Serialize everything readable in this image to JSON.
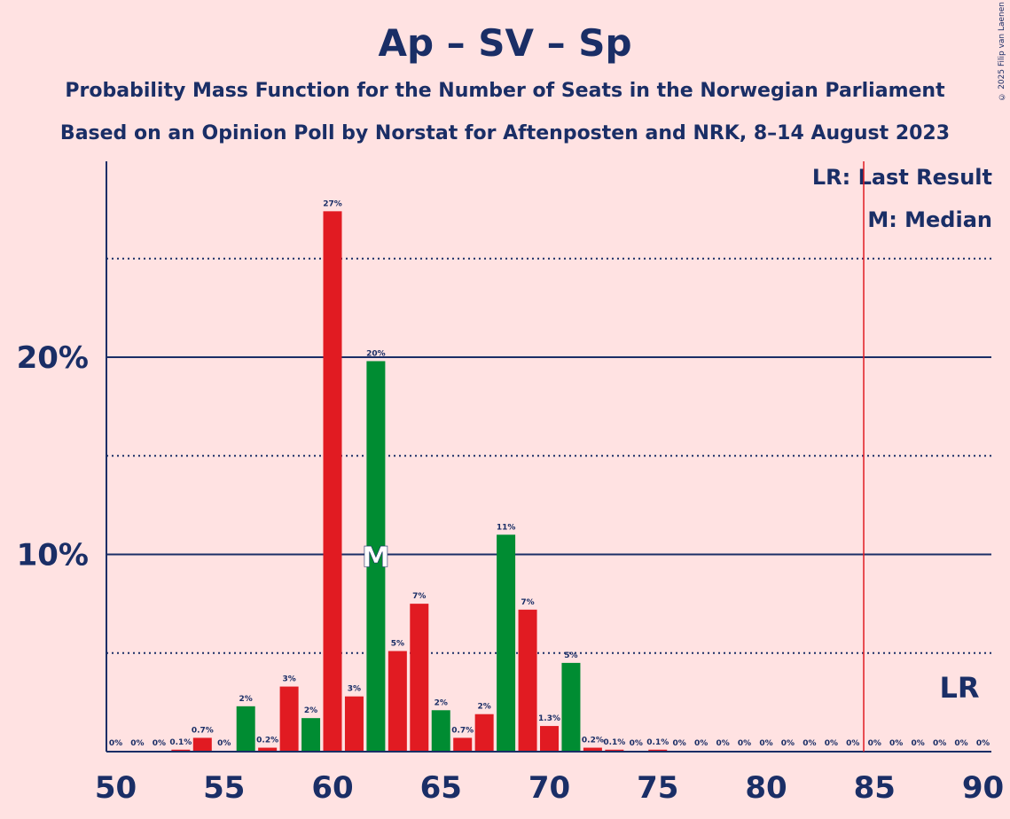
{
  "title": "Ap – SV – Sp",
  "subtitle1": "Probability Mass Function for the Number of Seats in the Norwegian Parliament",
  "subtitle2": "Based on an Opinion Poll by Norstat for Aftenposten and NRK, 8–14 August 2023",
  "copyright": "© 2025 Filip van Laenen",
  "legend": {
    "last_result": "LR: Last Result",
    "median": "M: Median"
  },
  "colors": {
    "background": "#FFE2E2",
    "text": "#1A2E66",
    "red": "#E11B22",
    "green": "#008C32",
    "lr_line": "#E11B22"
  },
  "chart_data": {
    "type": "bar",
    "x": [
      50,
      51,
      52,
      53,
      54,
      55,
      56,
      57,
      58,
      59,
      60,
      61,
      62,
      63,
      64,
      65,
      66,
      67,
      68,
      69,
      70,
      71,
      72,
      73,
      74,
      75,
      76,
      77,
      78,
      79,
      80,
      81,
      82,
      83,
      84,
      85,
      86,
      87,
      88,
      89,
      90
    ],
    "values": [
      0,
      0,
      0,
      0.1,
      0.7,
      0,
      2.3,
      0.2,
      3.3,
      1.7,
      27.4,
      2.8,
      19.8,
      5.1,
      7.5,
      2.1,
      0.7,
      1.9,
      11.0,
      7.2,
      1.3,
      4.5,
      0.2,
      0.1,
      0,
      0.1,
      0,
      0,
      0,
      0,
      0,
      0,
      0,
      0,
      0,
      0,
      0,
      0,
      0,
      0,
      0
    ],
    "labels": [
      "0%",
      "0%",
      "0%",
      "0.1%",
      "0.7%",
      "0%",
      "2%",
      "0.2%",
      "3%",
      "2%",
      "27%",
      "3%",
      "20%",
      "5%",
      "7%",
      "2%",
      "0.7%",
      "2%",
      "11%",
      "7%",
      "1.3%",
      "5%",
      "0.2%",
      "0.1%",
      "0%",
      "0.1%",
      "0%",
      "0%",
      "0%",
      "0%",
      "0%",
      "0%",
      "0%",
      "0%",
      "0%",
      "0%",
      "0%",
      "0%",
      "0%",
      "0%",
      "0%"
    ],
    "colors": [
      "red",
      "red",
      "red",
      "red",
      "red",
      "red",
      "green",
      "red",
      "red",
      "green",
      "red",
      "red",
      "green",
      "red",
      "red",
      "green",
      "red",
      "red",
      "green",
      "red",
      "red",
      "green",
      "red",
      "red",
      "red",
      "red",
      "red",
      "red",
      "red",
      "red",
      "red",
      "red",
      "red",
      "red",
      "red",
      "red",
      "red",
      "red",
      "red",
      "red",
      "red"
    ],
    "xticks": [
      50,
      55,
      60,
      65,
      70,
      75,
      80,
      85,
      90
    ],
    "xtick_labels": [
      "50",
      "55",
      "60",
      "65",
      "70",
      "75",
      "80",
      "85",
      "90"
    ],
    "ylim": [
      0,
      30
    ],
    "yticks_major": [
      10,
      20
    ],
    "ytick_labels": [
      "10%",
      "20%"
    ],
    "yticks_dotted": [
      5,
      15,
      25
    ],
    "median_seat": 62,
    "median_marker": "M",
    "last_result_seat": 85,
    "last_result_label": "LR"
  }
}
